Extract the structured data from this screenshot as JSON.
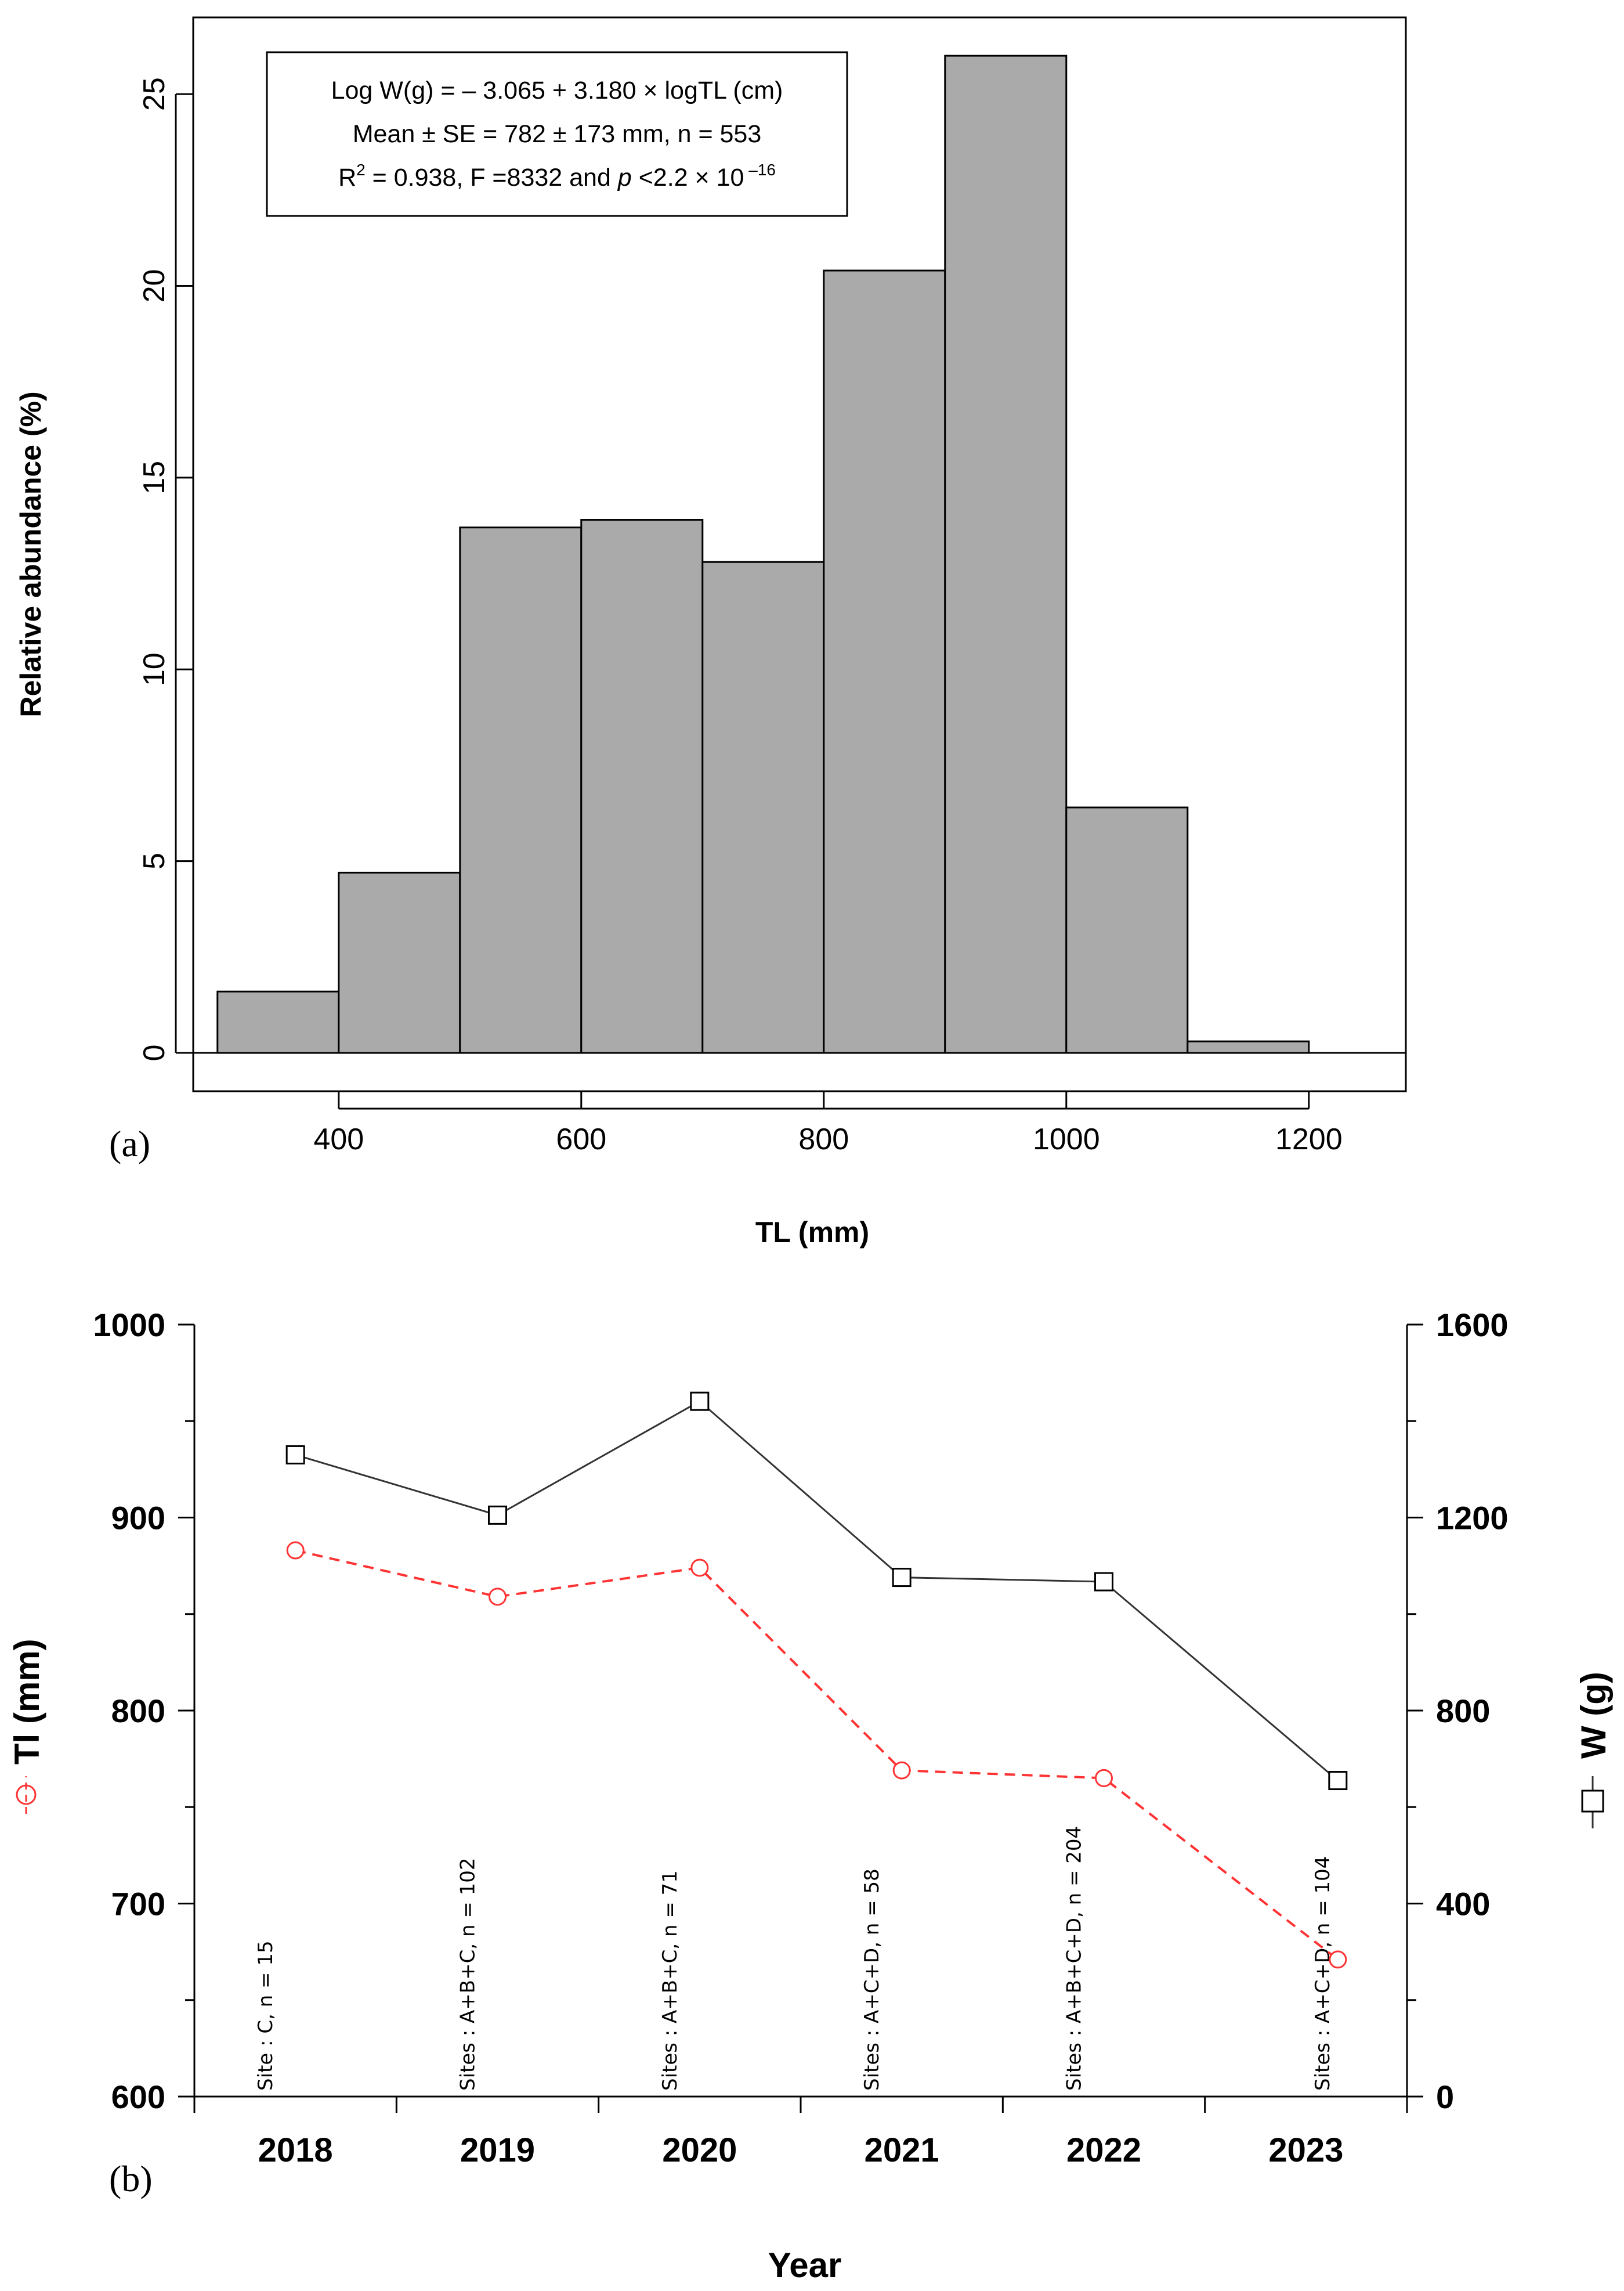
{
  "panel_labels": {
    "a": "(a)",
    "b": "(b)"
  },
  "chart_data": [
    {
      "type": "bar",
      "subtype": "histogram",
      "panel": "(a)",
      "xlabel": "TL (mm)",
      "ylabel": "Relative abundance (%)",
      "xlim": [
        280,
        1280
      ],
      "ylim": [
        -1,
        27
      ],
      "xticks": [
        400,
        600,
        800,
        1000,
        1200
      ],
      "yticks": [
        0,
        5,
        10,
        15,
        20,
        25
      ],
      "bins": [
        {
          "x0": 300,
          "x1": 400,
          "value": 1.6
        },
        {
          "x0": 400,
          "x1": 500,
          "value": 4.7
        },
        {
          "x0": 500,
          "x1": 600,
          "value": 13.7
        },
        {
          "x0": 600,
          "x1": 700,
          "value": 13.9
        },
        {
          "x0": 700,
          "x1": 800,
          "value": 12.8
        },
        {
          "x0": 800,
          "x1": 900,
          "value": 20.4
        },
        {
          "x0": 900,
          "x1": 1000,
          "value": 26.0
        },
        {
          "x0": 1000,
          "x1": 1100,
          "value": 6.4
        },
        {
          "x0": 1100,
          "x1": 1200,
          "value": 0.3
        }
      ],
      "bar_color": "#aaaaaa",
      "annotation": {
        "line1": "Log W(g) = – 3.065 + 3.180 × logTL (cm)",
        "line2": "Mean ± SE = 782 ± 173 mm, n = 553",
        "line3_prefix": "R",
        "line3_sup": "2",
        "line3_mid": " = 0.938, F =8332 and ",
        "line3_p": "p",
        "line3_end": " <2.2 × 10",
        "line3_exp": " –16"
      }
    },
    {
      "type": "line",
      "panel": "(b)",
      "xlabel": "Year",
      "categories": [
        "2018",
        "2019",
        "2020",
        "2021",
        "2022",
        "2023"
      ],
      "y_left": {
        "label": "Tl (mm)",
        "range": [
          600,
          1000
        ],
        "ticks": [
          600,
          700,
          800,
          900,
          1000
        ]
      },
      "y_right": {
        "label": "W (g)",
        "range": [
          0,
          1600
        ],
        "ticks": [
          0,
          400,
          800,
          1200,
          1600
        ]
      },
      "series": [
        {
          "name": "Tl (mm)",
          "axis": "left",
          "marker": "circle",
          "style": "dashed",
          "color": "#ff3333",
          "values": [
            883,
            859,
            874,
            769,
            765,
            671
          ]
        },
        {
          "name": "W (g)",
          "axis": "right",
          "marker": "square",
          "style": "solid",
          "color": "#333333",
          "values": [
            1330,
            1205,
            1441,
            1076,
            1067,
            655
          ]
        }
      ],
      "site_labels": [
        "Site : C, n = 15",
        "Sites : A+B+C, n = 102",
        "Sites : A+B+C, n = 71",
        "Sites : A+C+D, n = 58",
        "Sites : A+B+C+D, n = 204",
        "Sites : A+C+D, n = 104"
      ],
      "colors": {
        "tl": "#ff3333",
        "w": "#333333"
      }
    }
  ]
}
